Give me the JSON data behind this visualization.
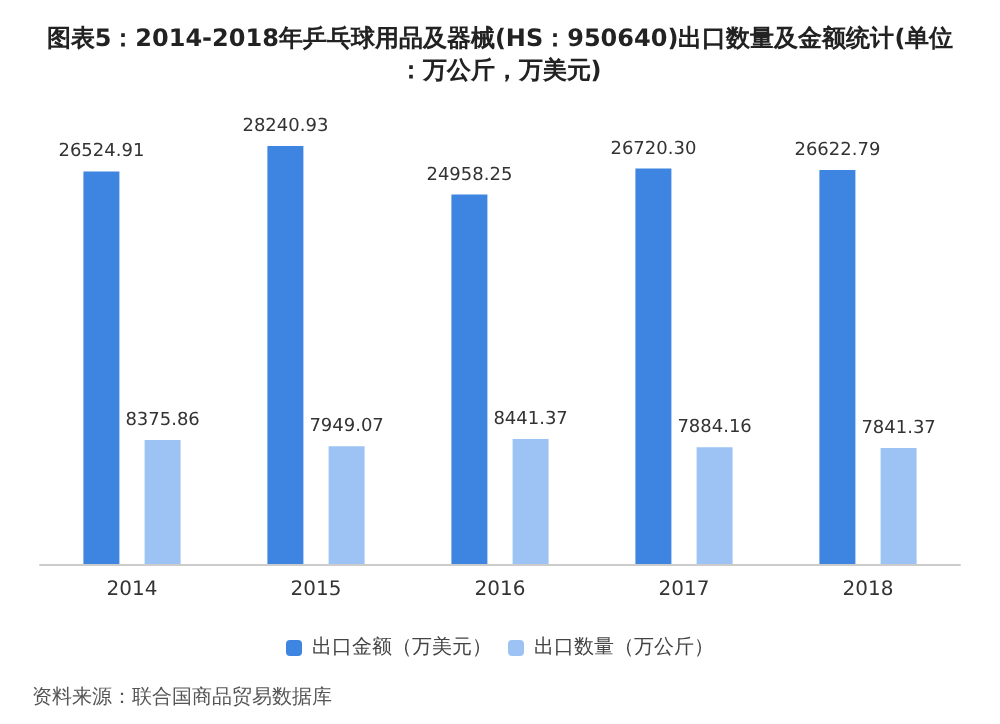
{
  "chart_data": {
    "type": "bar",
    "title": "图表5：2014-2018年乒乓球用品及器械(HS：950640)出口数量及金额统计(单位：万公斤，万美元)",
    "categories": [
      "2014",
      "2015",
      "2016",
      "2017",
      "2018"
    ],
    "series": [
      {
        "name": "出口金额（万美元）",
        "color": "#3d85e0",
        "values": [
          26524.91,
          28240.93,
          24958.25,
          26720.3,
          26622.79
        ],
        "value_labels": [
          "26524.91",
          "28240.93",
          "24958.25",
          "26720.30",
          "26622.79"
        ]
      },
      {
        "name": "出口数量（万公斤）",
        "color": "#9cc3f4",
        "values": [
          8375.86,
          7949.07,
          8441.37,
          7884.16,
          7841.37
        ],
        "value_labels": [
          "8375.86",
          "7949.07",
          "8441.37",
          "7884.16",
          "7841.37"
        ]
      }
    ],
    "legend": "bottom",
    "annotations": [
      "资料来源：联合国商品贸易数据库"
    ]
  }
}
